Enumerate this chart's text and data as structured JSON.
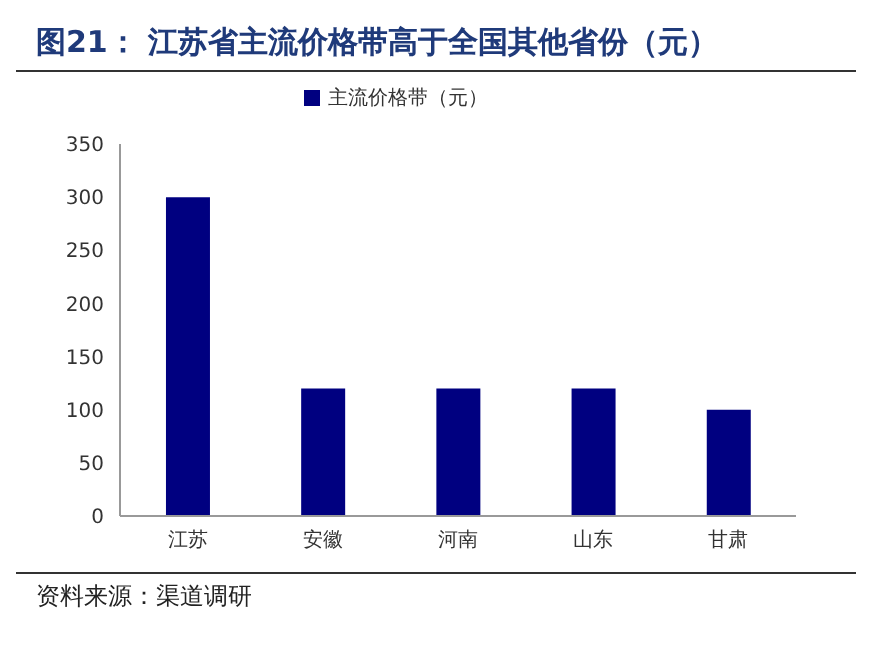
{
  "chart_data": {
    "type": "bar",
    "title": "图21：  江苏省主流价格带高于全国其他省份（元）",
    "categories": [
      "江苏",
      "安徽",
      "河南",
      "山东",
      "甘肃"
    ],
    "series": [
      {
        "name": "主流价格带（元）",
        "color": "#000080",
        "values": [
          300,
          120,
          120,
          120,
          100
        ]
      }
    ],
    "ylim": [
      0,
      350
    ],
    "yticks": [
      0,
      50,
      100,
      150,
      200,
      250,
      300,
      350
    ],
    "grid": false,
    "legend": "top",
    "annotations": [
      "资料来源：渠道调研"
    ]
  }
}
